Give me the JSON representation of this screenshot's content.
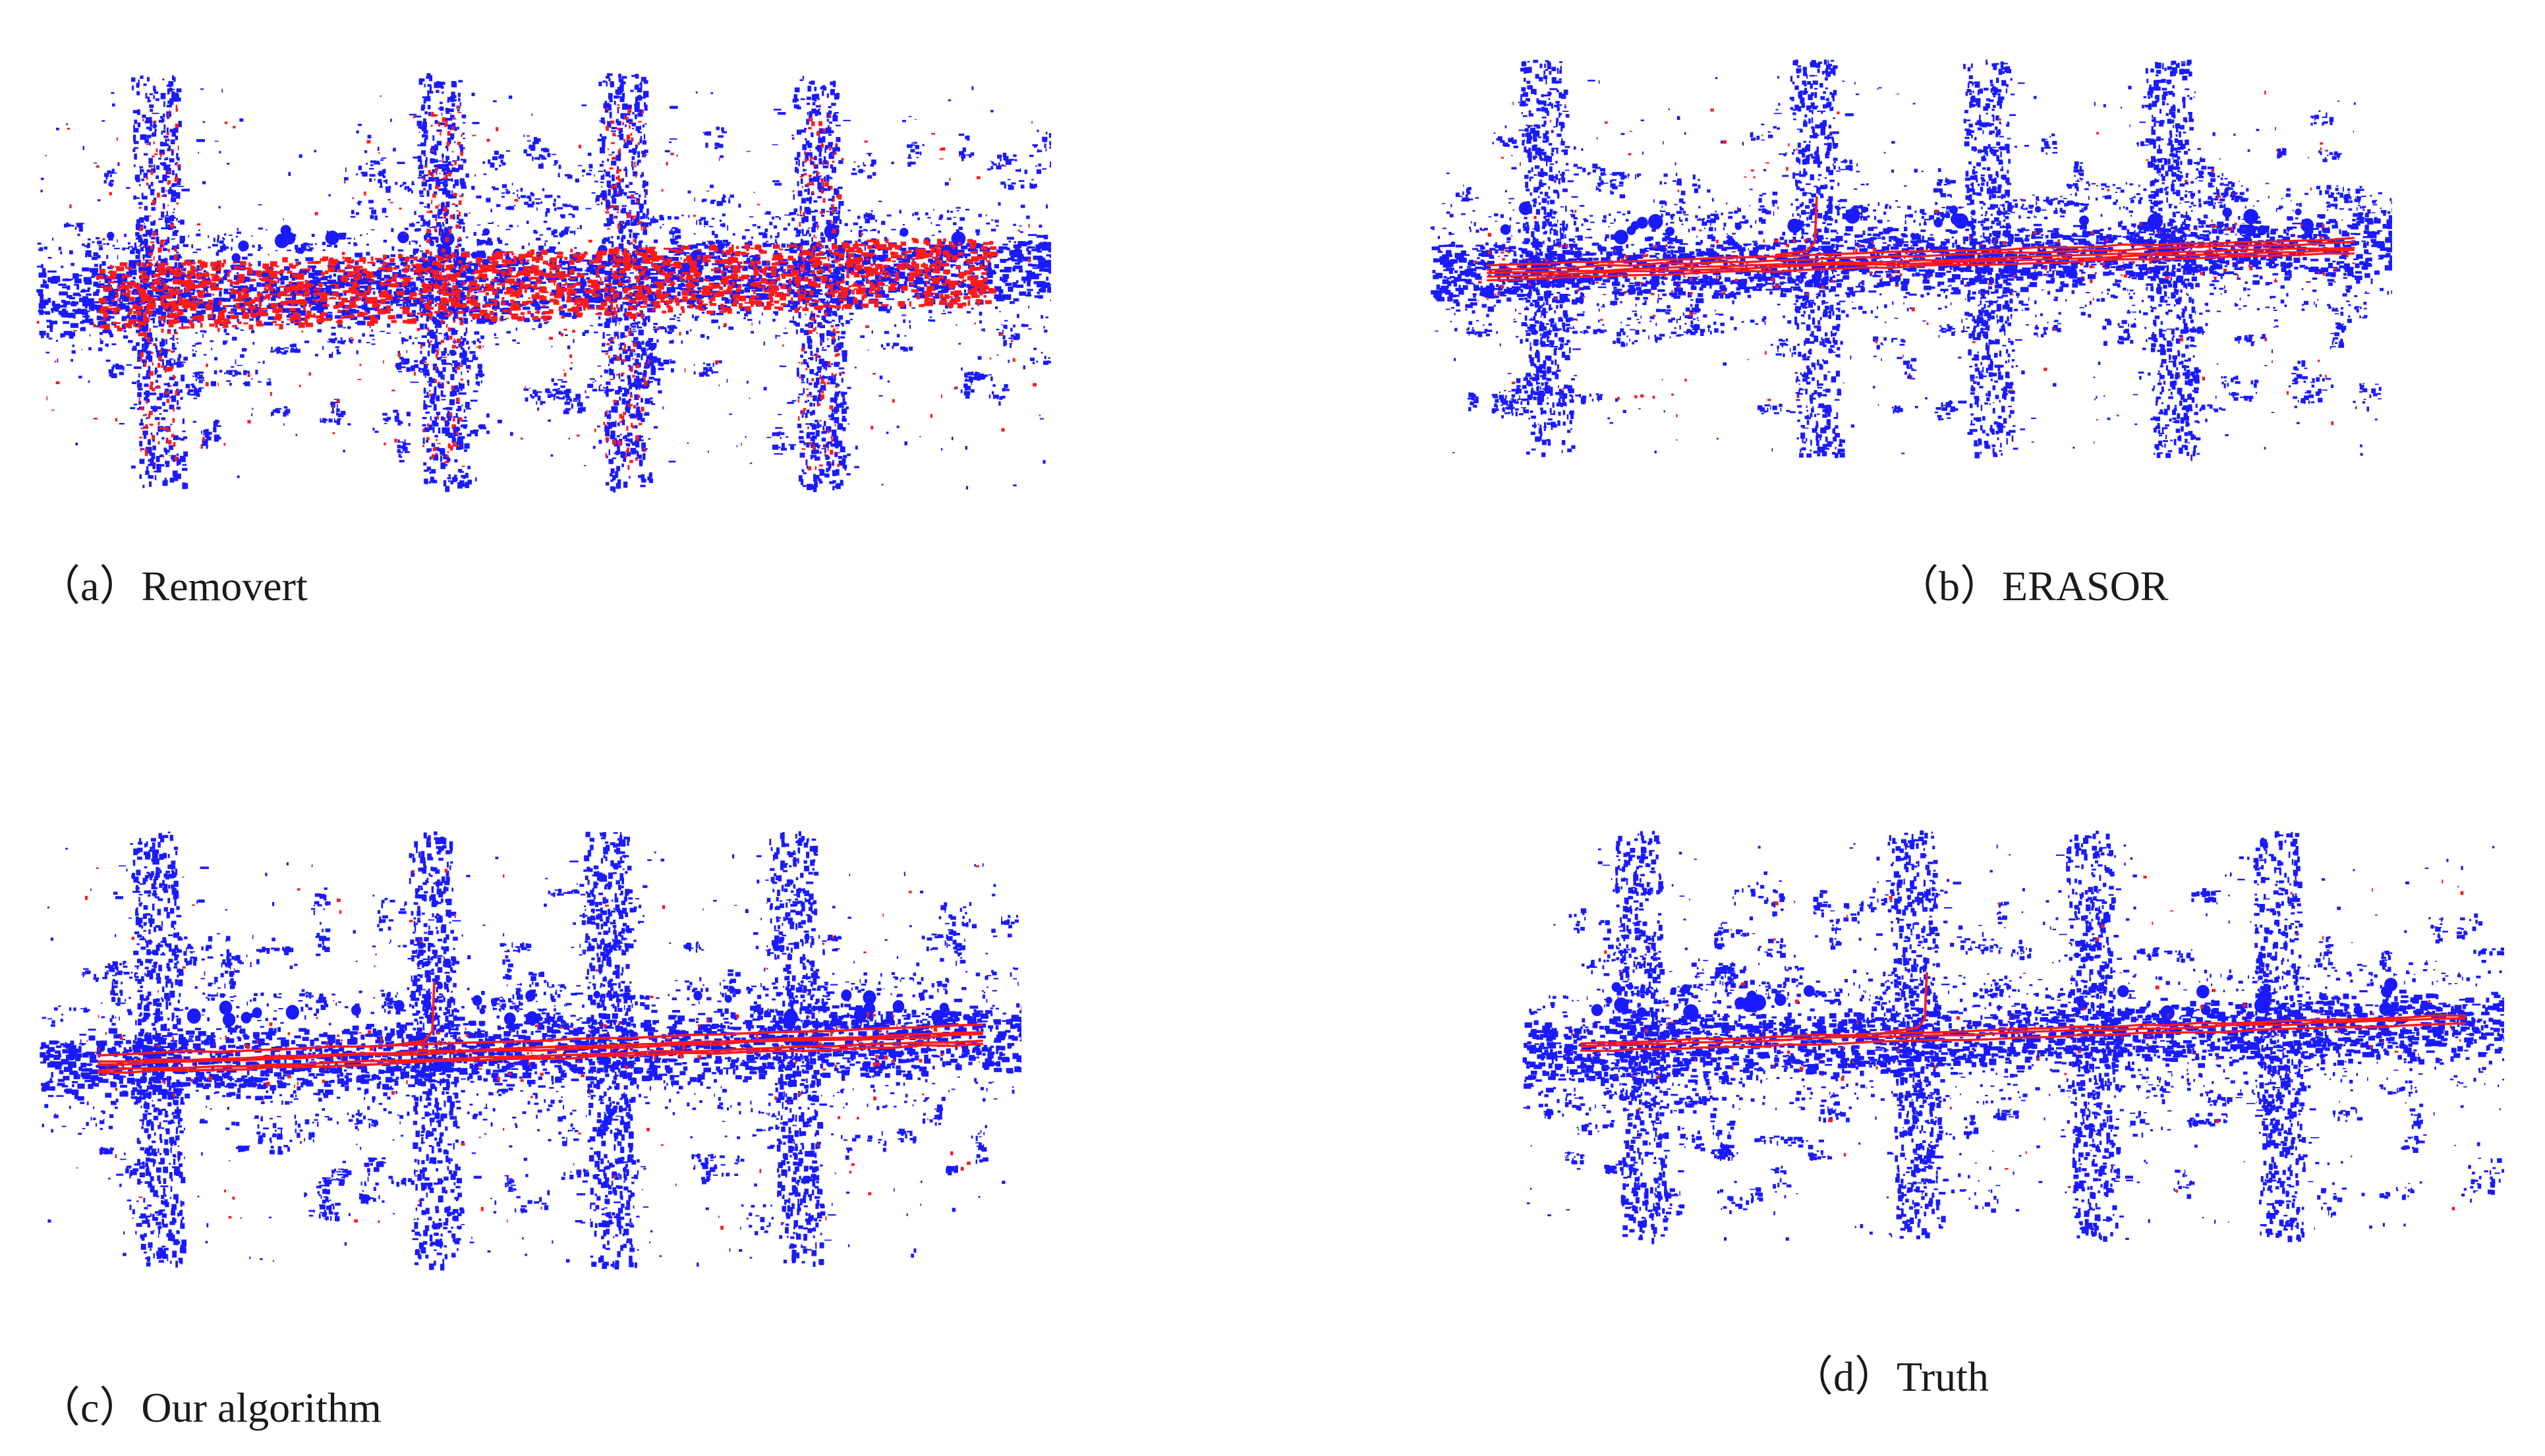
{
  "figure": {
    "colors": {
      "static_points": "#1a1aff",
      "dynamic_points": "#ff1a1a",
      "background": "#ffffff"
    },
    "panels": [
      {
        "id": "a",
        "caption": "（a）Removert",
        "dynamic_level": 0.85
      },
      {
        "id": "b",
        "caption": "（b）ERASOR",
        "dynamic_level": 0.35
      },
      {
        "id": "c",
        "caption": "（c）Our algorithm",
        "dynamic_level": 0.25
      },
      {
        "id": "d",
        "caption": "（d）Truth",
        "dynamic_level": 0.12
      }
    ]
  }
}
